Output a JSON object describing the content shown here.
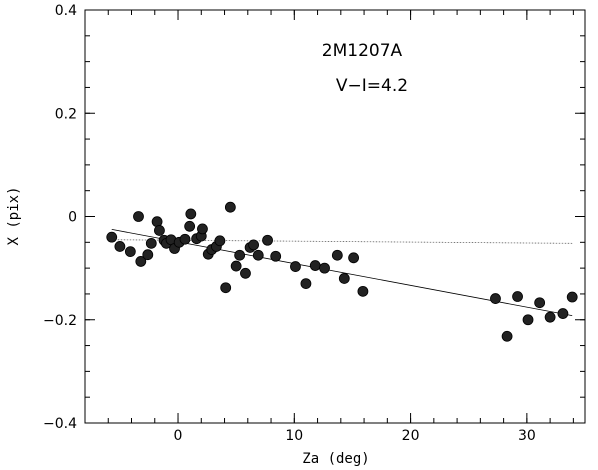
{
  "chart_data": {
    "type": "scatter",
    "xlabel": "Za (deg)",
    "ylabel": "X (pix)",
    "xlim": [
      -8,
      35
    ],
    "ylim": [
      -0.4,
      0.4
    ],
    "x_ticks": [
      0,
      10,
      20,
      30
    ],
    "y_ticks": [
      -0.4,
      -0.2,
      0,
      0.2,
      0.4
    ],
    "x_tick_labels": [
      "0",
      "10",
      "20",
      "30"
    ],
    "y_tick_labels": [
      "−0.4",
      "−0.2",
      "0",
      "0.2",
      "0.4"
    ],
    "x_minor_step": 2,
    "y_minor_step": 0.05,
    "annotations": [
      "2M1207A",
      "V−I=4.2"
    ],
    "series": [
      {
        "points": [
          [
            -5.7,
            -0.04
          ],
          [
            -5.0,
            -0.058
          ],
          [
            -4.1,
            -0.068
          ],
          [
            -3.4,
            0.0
          ],
          [
            -3.2,
            -0.087
          ],
          [
            -2.6,
            -0.074
          ],
          [
            -2.3,
            -0.052
          ],
          [
            -1.8,
            -0.01
          ],
          [
            -1.6,
            -0.027
          ],
          [
            -1.2,
            -0.046
          ],
          [
            -1.0,
            -0.052
          ],
          [
            -0.6,
            -0.045
          ],
          [
            -0.3,
            -0.062
          ],
          [
            0.1,
            -0.05
          ],
          [
            0.6,
            -0.044
          ],
          [
            1.0,
            -0.019
          ],
          [
            1.1,
            0.005
          ],
          [
            1.6,
            -0.043
          ],
          [
            2.0,
            -0.038
          ],
          [
            2.1,
            -0.024
          ],
          [
            2.6,
            -0.073
          ],
          [
            2.9,
            -0.064
          ],
          [
            3.3,
            -0.058
          ],
          [
            3.6,
            -0.047
          ],
          [
            4.1,
            -0.138
          ],
          [
            4.5,
            0.018
          ],
          [
            5.0,
            -0.096
          ],
          [
            5.3,
            -0.075
          ],
          [
            5.8,
            -0.11
          ],
          [
            6.2,
            -0.06
          ],
          [
            6.5,
            -0.055
          ],
          [
            6.9,
            -0.075
          ],
          [
            7.7,
            -0.046
          ],
          [
            8.4,
            -0.077
          ],
          [
            10.1,
            -0.097
          ],
          [
            11.0,
            -0.13
          ],
          [
            11.8,
            -0.095
          ],
          [
            12.6,
            -0.1
          ],
          [
            13.7,
            -0.075
          ],
          [
            14.3,
            -0.12
          ],
          [
            15.1,
            -0.08
          ],
          [
            15.9,
            -0.145
          ],
          [
            27.3,
            -0.159
          ],
          [
            28.3,
            -0.232
          ],
          [
            29.2,
            -0.155
          ],
          [
            30.1,
            -0.2
          ],
          [
            31.1,
            -0.167
          ],
          [
            32.0,
            -0.195
          ],
          [
            33.1,
            -0.188
          ],
          [
            33.9,
            -0.156
          ]
        ],
        "color": "#222222"
      }
    ],
    "fit_line": {
      "x": [
        -5.7,
        33.9
      ],
      "y": [
        -0.025,
        -0.192
      ],
      "style": "solid"
    },
    "reference_line": {
      "x": [
        -5.7,
        33.9
      ],
      "y": [
        -0.045,
        -0.052
      ],
      "style": "dotted"
    }
  }
}
